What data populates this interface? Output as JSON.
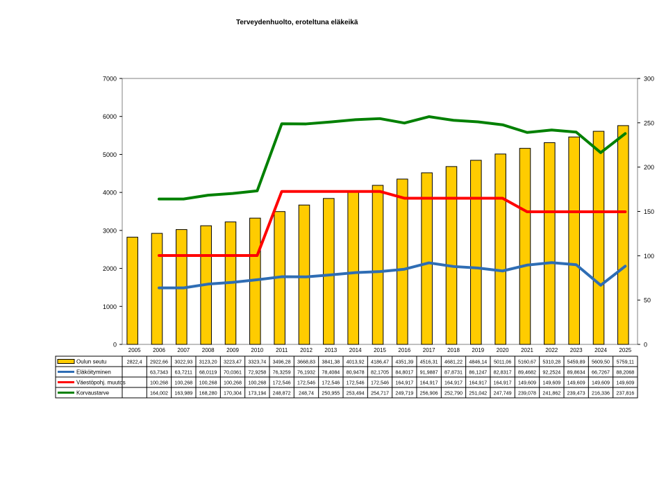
{
  "title": "Terveydenhuolto, eroteltuna eläkeikä",
  "chart_data": {
    "type": "bar",
    "title": "Terveydenhuolto, eroteltuna eläkeikä",
    "categories": [
      "2005",
      "2006",
      "2007",
      "2008",
      "2009",
      "2010",
      "2011",
      "2012",
      "2013",
      "2014",
      "2015",
      "2016",
      "2017",
      "2018",
      "2019",
      "2020",
      "2021",
      "2022",
      "2023",
      "2024",
      "2025"
    ],
    "y_left": {
      "min": 0,
      "max": 7000,
      "ticks": [
        "0",
        "1000",
        "2000",
        "3000",
        "4000",
        "5000",
        "6000",
        "7000"
      ]
    },
    "y_right": {
      "min": 0,
      "max": 300,
      "ticks": [
        "0",
        "50",
        "100",
        "150",
        "200",
        "250",
        "300"
      ]
    },
    "legend_placement": "bottom data table",
    "series": [
      {
        "name": "Oulun seutu",
        "kind": "bar",
        "axis": "left",
        "color": "#FFCC00",
        "border": "#000000",
        "values": [
          2822.4,
          2922.66,
          3022.93,
          3123.2,
          3223.47,
          3323.74,
          3496.28,
          3668.83,
          3841.38,
          4013.92,
          4186.47,
          4351.39,
          4516.31,
          4681.22,
          4846.14,
          5011.06,
          5160.67,
          5310.28,
          5459.89,
          5609.5,
          5759.11
        ],
        "labels": [
          "2822,4",
          "2922,66",
          "3022,93",
          "3123,20",
          "3223,47",
          "3323,74",
          "3496,28",
          "3668,83",
          "3841,38",
          "4013,92",
          "4186,47",
          "4351,39",
          "4516,31",
          "4681,22",
          "4846,14",
          "5011,06",
          "5160,67",
          "5310,28",
          "5459,89",
          "5609,50",
          "5759,11"
        ]
      },
      {
        "name": "Eläköityminen",
        "kind": "line",
        "axis": "right",
        "color": "#2E6DB4",
        "values": [
          null,
          63.7343,
          63.7211,
          68.0119,
          70.0361,
          72.9258,
          76.3259,
          76.1932,
          78.4084,
          80.9478,
          82.1705,
          84.8017,
          91.9887,
          87.8731,
          86.1247,
          82.8317,
          89.4682,
          92.2524,
          89.8634,
          66.7267,
          88.2068
        ],
        "labels": [
          "",
          "63,7343",
          "63,7211",
          "68,0119",
          "70,0361",
          "72,9258",
          "76,3259",
          "76,1932",
          "78,4084",
          "80,9478",
          "82,1705",
          "84,8017",
          "91,9887",
          "87,8731",
          "86,1247",
          "82,8317",
          "89,4682",
          "92,2524",
          "89,8634",
          "66,7267",
          "88,2068"
        ]
      },
      {
        "name": "Väestöpohj. muutos",
        "kind": "line",
        "axis": "right",
        "color": "#FF0000",
        "values": [
          null,
          100.268,
          100.268,
          100.268,
          100.268,
          100.268,
          172.546,
          172.546,
          172.546,
          172.546,
          172.546,
          164.917,
          164.917,
          164.917,
          164.917,
          164.917,
          149.609,
          149.609,
          149.609,
          149.609,
          149.609
        ],
        "labels": [
          "",
          "100,268",
          "100,268",
          "100,268",
          "100,268",
          "100,268",
          "172,546",
          "172,546",
          "172,546",
          "172,546",
          "172,546",
          "164,917",
          "164,917",
          "164,917",
          "164,917",
          "164,917",
          "149,609",
          "149,609",
          "149,609",
          "149,609",
          "149,609"
        ]
      },
      {
        "name": "Korvaustarve",
        "kind": "line",
        "axis": "right",
        "color": "#008000",
        "values": [
          null,
          164.002,
          163.989,
          168.28,
          170.304,
          173.194,
          248.872,
          248.74,
          250.955,
          253.494,
          254.717,
          249.719,
          256.906,
          252.79,
          251.042,
          247.749,
          239.078,
          241.862,
          239.473,
          216.336,
          237.816
        ],
        "labels": [
          "",
          "164,002",
          "163,989",
          "168,280",
          "170,304",
          "173,194",
          "248,872",
          "248,74",
          "250,955",
          "253,494",
          "254,717",
          "249,719",
          "256,906",
          "252,790",
          "251,042",
          "247,749",
          "239,078",
          "241,862",
          "239,473",
          "216,336",
          "237,816"
        ]
      }
    ]
  }
}
